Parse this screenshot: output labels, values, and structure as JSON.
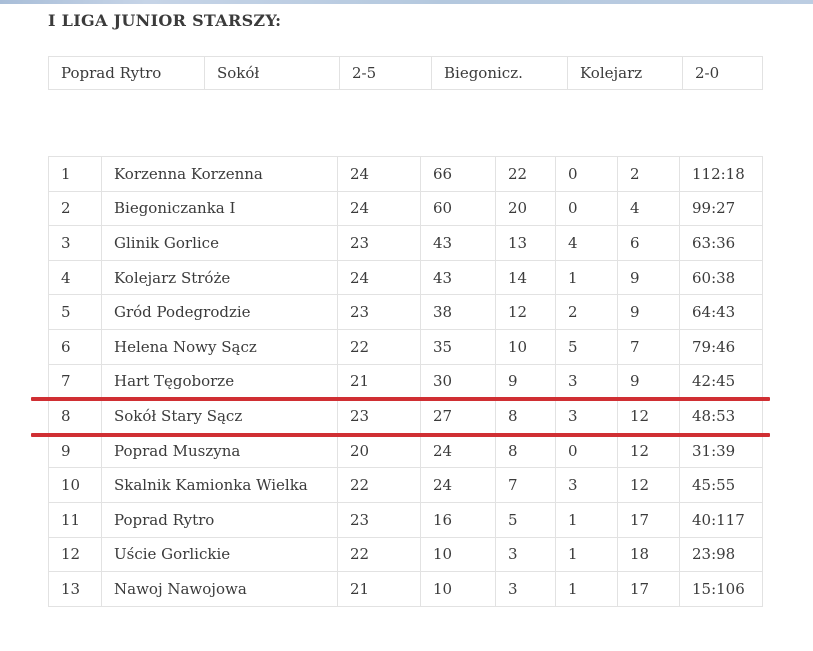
{
  "page": {
    "title": "I LIGA JUNIOR STARSZY:"
  },
  "colors": {
    "highlight_red": "#d02f33",
    "border_gray": "#e2e2e2",
    "text_dark": "#3b3b3b",
    "top_band_blue": "#b9cbe0"
  },
  "results_strip": {
    "cells": [
      "Poprad Rytro",
      "Sokół",
      "2-5",
      "Biegonicz.",
      "Kolejarz",
      "2-0"
    ]
  },
  "standings": {
    "highlighted_team": "Sokół Stary Sącz",
    "rows": [
      {
        "pos": "1",
        "team": "Korzenna Korzenna",
        "played": "24",
        "points": "66",
        "wins": "22",
        "draws": "0",
        "losses": "2",
        "goals": "112:18",
        "highlighted": false
      },
      {
        "pos": "2",
        "team": "Biegoniczanka I",
        "played": "24",
        "points": "60",
        "wins": "20",
        "draws": "0",
        "losses": "4",
        "goals": "99:27",
        "highlighted": false
      },
      {
        "pos": "3",
        "team": "Glinik Gorlice",
        "played": "23",
        "points": "43",
        "wins": "13",
        "draws": "4",
        "losses": "6",
        "goals": "63:36",
        "highlighted": false
      },
      {
        "pos": "4",
        "team": "Kolejarz Stróże",
        "played": "24",
        "points": "43",
        "wins": "14",
        "draws": "1",
        "losses": "9",
        "goals": "60:38",
        "highlighted": false
      },
      {
        "pos": "5",
        "team": "Gród Podegrodzie",
        "played": "23",
        "points": "38",
        "wins": "12",
        "draws": "2",
        "losses": "9",
        "goals": "64:43",
        "highlighted": false
      },
      {
        "pos": "6",
        "team": "Helena Nowy Sącz",
        "played": "22",
        "points": "35",
        "wins": "10",
        "draws": "5",
        "losses": "7",
        "goals": "79:46",
        "highlighted": false
      },
      {
        "pos": "7",
        "team": "Hart Tęgoborze",
        "played": "21",
        "points": "30",
        "wins": "9",
        "draws": "3",
        "losses": "9",
        "goals": "42:45",
        "highlighted": false
      },
      {
        "pos": "8",
        "team": "Sokół Stary Sącz",
        "played": "23",
        "points": "27",
        "wins": "8",
        "draws": "3",
        "losses": "12",
        "goals": "48:53",
        "highlighted": true
      },
      {
        "pos": "9",
        "team": "Poprad Muszyna",
        "played": "20",
        "points": "24",
        "wins": "8",
        "draws": "0",
        "losses": "12",
        "goals": "31:39",
        "highlighted": false
      },
      {
        "pos": "10",
        "team": "Skalnik Kamionka Wielka",
        "played": "22",
        "points": "24",
        "wins": "7",
        "draws": "3",
        "losses": "12",
        "goals": "45:55",
        "highlighted": false
      },
      {
        "pos": "11",
        "team": "Poprad Rytro",
        "played": "23",
        "points": "16",
        "wins": "5",
        "draws": "1",
        "losses": "17",
        "goals": "40:117",
        "highlighted": false
      },
      {
        "pos": "12",
        "team": "Uście Gorlickie",
        "played": "22",
        "points": "10",
        "wins": "3",
        "draws": "1",
        "losses": "18",
        "goals": "23:98",
        "highlighted": false
      },
      {
        "pos": "13",
        "team": "Nawoj Nawojowa",
        "played": "21",
        "points": "10",
        "wins": "3",
        "draws": "1",
        "losses": "17",
        "goals": "15:106",
        "highlighted": false
      }
    ]
  }
}
